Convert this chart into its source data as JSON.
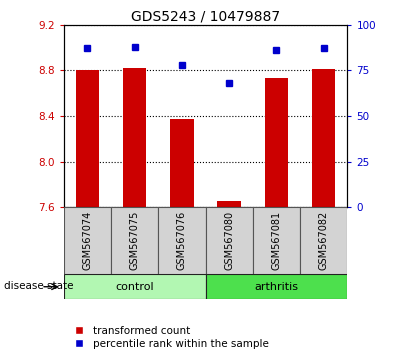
{
  "title": "GDS5243 / 10479887",
  "samples": [
    "GSM567074",
    "GSM567075",
    "GSM567076",
    "GSM567080",
    "GSM567081",
    "GSM567082"
  ],
  "red_values": [
    8.8,
    8.82,
    8.37,
    7.65,
    8.73,
    8.81
  ],
  "blue_values": [
    87,
    88,
    78,
    68,
    86,
    87
  ],
  "ylim_left": [
    7.6,
    9.2
  ],
  "ylim_right": [
    0,
    100
  ],
  "yticks_left": [
    7.6,
    8.0,
    8.4,
    8.8,
    9.2
  ],
  "yticks_right": [
    0,
    25,
    50,
    75,
    100
  ],
  "groups": [
    {
      "label": "control",
      "indices": [
        0,
        1,
        2
      ]
    },
    {
      "label": "arthritis",
      "indices": [
        3,
        4,
        5
      ]
    }
  ],
  "group_colors": [
    "#b2f7b2",
    "#4de04d"
  ],
  "bar_color": "#CC0000",
  "square_color": "#0000CC",
  "bar_width": 0.5,
  "base_value": 7.6,
  "tick_color_left": "#CC0000",
  "tick_color_right": "#0000CC",
  "disease_state_label": "disease state",
  "legend_bar_label": "transformed count",
  "legend_square_label": "percentile rank within the sample"
}
